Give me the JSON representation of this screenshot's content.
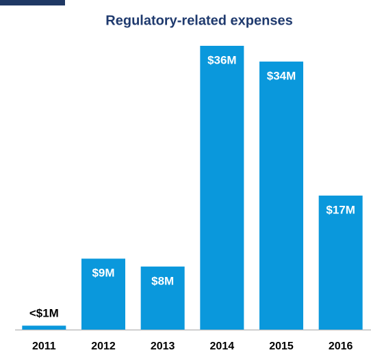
{
  "chart_data": {
    "type": "bar",
    "title": "Regulatory-related expenses",
    "categories": [
      "2011",
      "2012",
      "2013",
      "2014",
      "2015",
      "2016"
    ],
    "values": [
      0.5,
      9,
      8,
      36,
      34,
      17
    ],
    "value_labels": [
      "<$1M",
      "$9M",
      "$8M",
      "$36M",
      "$34M",
      "$17M"
    ],
    "color": "#0a98dc"
  }
}
